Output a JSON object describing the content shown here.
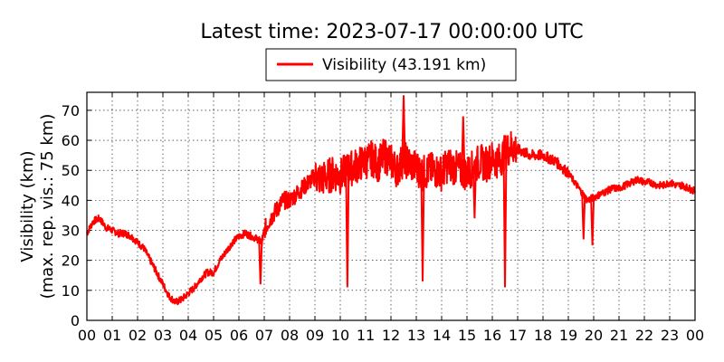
{
  "chart_data": {
    "type": "line",
    "title": "Latest time: 2023-07-17 00:00:00 UTC",
    "ylabel_lines": [
      "Visibility (km)",
      "(max. rep. vis.: 75 km)"
    ],
    "xlabel": "",
    "xlim": [
      0,
      24
    ],
    "ylim": [
      0,
      76
    ],
    "x_ticks": [
      0,
      1,
      2,
      3,
      4,
      5,
      6,
      7,
      8,
      9,
      10,
      11,
      12,
      13,
      14,
      15,
      16,
      17,
      18,
      19,
      20,
      21,
      22,
      23,
      24
    ],
    "x_tick_labels": [
      "00",
      "01",
      "02",
      "03",
      "04",
      "05",
      "06",
      "07",
      "08",
      "09",
      "10",
      "11",
      "12",
      "13",
      "14",
      "15",
      "16",
      "17",
      "18",
      "19",
      "20",
      "21",
      "22",
      "23",
      "00"
    ],
    "y_ticks": [
      0,
      10,
      20,
      30,
      40,
      50,
      60,
      70
    ],
    "grid": true,
    "legend_position": "top-center",
    "series": [
      {
        "name": "Visibility (43.191 km)",
        "color": "#ff0000",
        "x": [
          0,
          0.25,
          0.5,
          0.75,
          1,
          1.25,
          1.5,
          1.75,
          2,
          2.25,
          2.5,
          2.75,
          3,
          3.25,
          3.5,
          3.75,
          4,
          4.25,
          4.5,
          4.75,
          5,
          5.25,
          5.5,
          5.75,
          6,
          6.25,
          6.5,
          6.75,
          6.9,
          7,
          7.25,
          7.5,
          7.75,
          8,
          8.25,
          8.5,
          8.75,
          9,
          9.25,
          9.5,
          9.75,
          10,
          10.25,
          10.5,
          10.75,
          11,
          11.25,
          11.5,
          11.75,
          12,
          12.25,
          12.5,
          12.75,
          13,
          13.25,
          13.5,
          13.75,
          14,
          14.25,
          14.5,
          14.75,
          15,
          15.25,
          15.5,
          15.75,
          16,
          16.25,
          16.5,
          16.75,
          17,
          17.25,
          17.5,
          17.75,
          18,
          18.25,
          18.5,
          18.75,
          19,
          19.25,
          19.5,
          19.75,
          20,
          20.25,
          20.5,
          20.75,
          21,
          21.25,
          21.5,
          21.75,
          22,
          22.25,
          22.5,
          22.75,
          23,
          23.25,
          23.5,
          23.75,
          24
        ],
        "y": [
          29,
          33,
          34,
          31,
          30,
          29,
          29,
          28,
          26,
          24,
          20,
          16,
          12,
          8,
          6,
          7,
          9,
          11,
          14,
          16,
          16,
          20,
          23,
          26,
          28,
          29,
          28,
          27,
          26,
          30,
          34,
          37,
          40,
          40,
          42,
          44,
          46,
          48,
          47,
          48,
          49,
          48,
          50,
          51,
          52,
          53,
          54,
          52,
          55,
          53,
          50,
          54,
          52,
          51,
          49,
          50,
          50,
          49,
          52,
          51,
          50,
          49,
          51,
          53,
          52,
          54,
          53,
          56,
          58,
          57,
          56,
          55,
          55,
          55,
          54,
          53,
          51,
          49,
          46,
          43,
          40,
          41,
          42,
          43,
          44,
          44,
          45,
          46,
          47,
          46,
          46,
          45,
          45,
          46,
          45,
          45,
          44,
          43
        ]
      }
    ],
    "spikes": [
      {
        "x": 6.85,
        "y": 12
      },
      {
        "x": 10.28,
        "y": 11
      },
      {
        "x": 12.5,
        "y": 75
      },
      {
        "x": 13.25,
        "y": 13
      },
      {
        "x": 14.85,
        "y": 68
      },
      {
        "x": 15.3,
        "y": 34
      },
      {
        "x": 16.5,
        "y": 11
      },
      {
        "x": 19.6,
        "y": 27
      },
      {
        "x": 19.95,
        "y": 25
      }
    ]
  }
}
